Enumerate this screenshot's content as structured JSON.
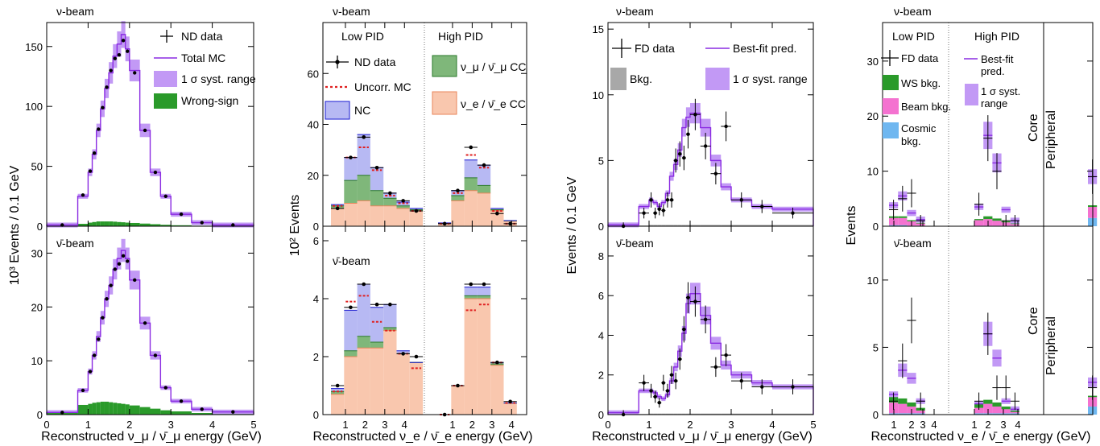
{
  "beam_labels": {
    "nu": "ν-beam",
    "nubar": "ν̄-beam"
  },
  "panel_text": {
    "p1_ylabel": "10³ Events / 0.1 GeV",
    "p1_xlabel": "Reconstructed ν_μ / ν̄_μ energy (GeV)",
    "p2_ylabel": "10² Events",
    "p2_xlabel": "Reconstructed ν_e / ν̄_e energy (GeV)",
    "p3_ylabel": "Events / 0.1 GeV",
    "p3_xlabel": "Reconstructed ν_μ / ν̄_μ energy (GeV)",
    "p4_ylabel": "Events",
    "p4_xlabel": "Reconstructed ν_e / ν̄_e energy (GeV)",
    "low_pid": "Low PID",
    "high_pid": "High PID",
    "core": "Core",
    "peripheral": "Peripheral"
  },
  "legends": {
    "p1": [
      "ND data",
      "Total MC",
      "1 σ syst. range",
      "Wrong-sign"
    ],
    "p2": [
      "ND data",
      "Uncorr. MC",
      "NC",
      "ν_μ / ν̄_μ CC",
      "ν_e / ν̄_e CC"
    ],
    "p3": [
      "FD data",
      "Best-fit pred.",
      "Bkg.",
      "1 σ syst. range"
    ],
    "p4": [
      "FD data",
      "Best-fit",
      "pred.",
      "WS bkg.",
      "1 σ syst.",
      "range",
      "Beam bkg.",
      "Cosmic",
      "bkg."
    ]
  },
  "colors": {
    "mc": "#8a2be2",
    "band": "#c299f5",
    "wrong_sign": "#2a9a2a",
    "nc": "#b7b9f3",
    "numu_cc": "#7fb77a",
    "nue_cc": "#f9c7ae",
    "nue_edge": "#e9855a",
    "uncorr": "#e02020",
    "bkg": "#a8a8a8",
    "ws_bkg": "#2a9a2a",
    "beam_bkg": "#f472d0",
    "cosmic_bkg": "#6fb7f0"
  },
  "chart_data": [
    {
      "type": "histogram",
      "panel": "nu-beam ND numu",
      "xlim": [
        0,
        5
      ],
      "ylim": [
        0,
        170
      ],
      "x_ticks": [
        0,
        1,
        2,
        3,
        4,
        5
      ],
      "y_ticks": [
        0,
        50,
        100,
        150
      ],
      "bin_edges": [
        0,
        0.75,
        1,
        1.1,
        1.2,
        1.3,
        1.4,
        1.5,
        1.6,
        1.7,
        1.8,
        1.9,
        2,
        2.25,
        2.5,
        2.75,
        3,
        3.5,
        4,
        5
      ],
      "mc": [
        1,
        25,
        45,
        60,
        80,
        98,
        115,
        128,
        142,
        152,
        160,
        148,
        130,
        80,
        45,
        25,
        10,
        3,
        1
      ],
      "data": [
        1,
        26,
        46,
        61,
        81,
        99,
        116,
        130,
        140,
        143,
        155,
        146,
        128,
        80,
        45,
        25,
        10,
        3,
        1
      ],
      "wrong_sign": [
        0.2,
        2,
        3,
        3.5,
        4,
        4,
        4,
        4,
        3.8,
        3.5,
        3.3,
        3,
        2.7,
        2.2,
        1.7,
        1.2,
        0.8,
        0.4,
        0.2
      ]
    },
    {
      "type": "histogram",
      "panel": "nubar-beam ND numu",
      "xlim": [
        0,
        5
      ],
      "ylim": [
        0,
        35
      ],
      "x_ticks": [
        0,
        1,
        2,
        3,
        4,
        5
      ],
      "y_ticks": [
        0,
        10,
        20,
        30
      ],
      "bin_edges": [
        0,
        0.75,
        1,
        1.1,
        1.2,
        1.3,
        1.4,
        1.5,
        1.6,
        1.7,
        1.8,
        1.9,
        2,
        2.25,
        2.5,
        2.75,
        3,
        3.5,
        4,
        5
      ],
      "mc": [
        0.4,
        4.5,
        8,
        11,
        14.5,
        18,
        21.5,
        24,
        27,
        29,
        30.5,
        29,
        25,
        17,
        11,
        5,
        2.5,
        1,
        0.5
      ],
      "data": [
        0.4,
        4.5,
        8,
        11,
        14,
        18,
        21.5,
        24,
        27,
        28,
        29.5,
        28.5,
        25,
        17,
        11,
        5,
        2.5,
        1,
        0.5
      ],
      "wrong_sign": [
        0.3,
        1.8,
        2,
        2.2,
        2.3,
        2.4,
        2.4,
        2.3,
        2.2,
        2.1,
        2,
        1.9,
        1.7,
        1.4,
        1.1,
        0.8,
        0.6,
        0.3,
        0.1
      ]
    },
    {
      "type": "stacked_histogram",
      "panel": "nu-beam ND nue",
      "ylim": [
        0,
        80
      ],
      "y_ticks": [
        0,
        20,
        40,
        60
      ],
      "x_ticks": [
        "1",
        "2",
        "3",
        "4",
        "1",
        "2",
        "3",
        "4"
      ],
      "nue_cc": [
        7,
        9,
        10,
        8,
        8,
        7,
        6,
        1,
        10,
        14,
        13,
        6,
        2
      ],
      "numu_cc": [
        1,
        9,
        10,
        6,
        3,
        1,
        0.5,
        0.2,
        2,
        5,
        3,
        0.5,
        0.1
      ],
      "nc": [
        0.5,
        9,
        16,
        9,
        2,
        1.5,
        0.5,
        0.1,
        2,
        7,
        8,
        0.5,
        0.1
      ],
      "uncorr_mc": [
        8,
        27,
        31,
        22,
        12,
        9,
        6,
        1,
        13,
        28,
        23,
        6,
        1
      ],
      "data": [
        7,
        27,
        35,
        23,
        13,
        10,
        6,
        1,
        14,
        31,
        24,
        5,
        1
      ]
    },
    {
      "type": "stacked_histogram",
      "panel": "nubar-beam ND nue",
      "ylim": [
        0,
        6.5
      ],
      "y_ticks": [
        0,
        2,
        4,
        6
      ],
      "x_ticks": [
        "1",
        "2",
        "3",
        "4",
        "1",
        "2",
        "3",
        "4"
      ],
      "nue_cc": [
        0.7,
        2,
        2.3,
        2.3,
        2.9,
        2.1,
        1.8,
        0,
        1,
        4,
        4,
        1.7,
        0.4
      ],
      "numu_cc": [
        0.1,
        0.2,
        0.4,
        0.2,
        0.1,
        0,
        0,
        0,
        0,
        0.1,
        0.1,
        0.05,
        0
      ],
      "nc": [
        0.1,
        1.4,
        1.8,
        1.2,
        0.8,
        0.1,
        0,
        0,
        0,
        0.3,
        0.3,
        0.05,
        0
      ],
      "uncorr_mc": [
        0.8,
        3.9,
        4.1,
        3.2,
        2.9,
        2.1,
        1.6,
        0,
        1,
        3.6,
        3.8,
        1.8,
        0.4
      ],
      "data": [
        1,
        3.7,
        4.5,
        3.8,
        3.8,
        2.1,
        2,
        0,
        1,
        4.5,
        4.5,
        1.8,
        0.45
      ]
    },
    {
      "type": "histogram",
      "panel": "nu-beam FD numu",
      "xlim": [
        0,
        5
      ],
      "ylim": [
        0,
        15.5
      ],
      "x_ticks": [
        0,
        1,
        2,
        3,
        4,
        5
      ],
      "y_ticks": [
        0,
        5,
        10,
        15
      ],
      "bin_edges": [
        0,
        0.75,
        1,
        1.1,
        1.2,
        1.3,
        1.4,
        1.5,
        1.6,
        1.7,
        1.8,
        1.9,
        2,
        2.25,
        2.5,
        2.75,
        3,
        3.5,
        4,
        5
      ],
      "mc": [
        0.1,
        1.5,
        2,
        1.8,
        1.5,
        1.8,
        2.5,
        3.8,
        4.7,
        5.8,
        7.5,
        8.3,
        8.6,
        7.5,
        5,
        3,
        2,
        1.5,
        1.3
      ],
      "data": [
        0,
        1,
        2,
        1,
        1.3,
        1.2,
        2,
        2,
        5,
        5.5,
        5.2,
        7,
        8.5,
        6.1,
        4,
        7.6,
        2,
        1.5,
        1
      ],
      "bkg": [
        0,
        0.05,
        0.1,
        0.1,
        0.1,
        0.1,
        0.1,
        0.1,
        0.1,
        0.1,
        0.1,
        0.1,
        0.1,
        0.1,
        0.1,
        0.1,
        0.1,
        0.1,
        0.1
      ]
    },
    {
      "type": "histogram",
      "panel": "nubar-beam FD numu",
      "xlim": [
        0,
        5
      ],
      "ylim": [
        0,
        9.5
      ],
      "x_ticks": [
        0,
        1,
        2,
        3,
        4,
        5
      ],
      "y_ticks": [
        0,
        2,
        4,
        6,
        8
      ],
      "bin_edges": [
        0,
        0.75,
        1,
        1.1,
        1.2,
        1.3,
        1.4,
        1.5,
        1.6,
        1.7,
        1.8,
        1.9,
        2,
        2.25,
        2.5,
        2.75,
        3,
        3.5,
        4,
        5
      ],
      "mc": [
        0.1,
        1.2,
        1.2,
        1.1,
        0.9,
        0.8,
        1,
        1.7,
        2.4,
        3.2,
        4.1,
        5.6,
        6.1,
        5,
        3.6,
        2.5,
        2,
        1.6,
        1.4
      ],
      "data": [
        0,
        1.6,
        1.2,
        0.9,
        0.6,
        1.6,
        1.2,
        2,
        1.7,
        2.8,
        4.3,
        5.9,
        5.7,
        4.8,
        2.4,
        3,
        1.7,
        1.4,
        1.4
      ],
      "bkg": [
        0,
        0.03,
        0.05,
        0.05,
        0.05,
        0.05,
        0.05,
        0.05,
        0.05,
        0.05,
        0.05,
        0.05,
        0.05,
        0.05,
        0.05,
        0.05,
        0.05,
        0.05,
        0.05
      ]
    },
    {
      "type": "stacked_histogram",
      "panel": "nu-beam FD nue",
      "ylim": [
        0,
        37
      ],
      "y_ticks": [
        0,
        10,
        20,
        30
      ],
      "x_ticks": [
        "1",
        "2",
        "3",
        "4",
        "1",
        "2",
        "3",
        "4"
      ],
      "pred": [
        3.8,
        5.5,
        2.4,
        1.2,
        3.5,
        16.5,
        11.5,
        3,
        1,
        9
      ],
      "ws_bkg": [
        0.3,
        0.3,
        0.2,
        0.1,
        0.2,
        0.5,
        0.4,
        0.2,
        0.1,
        0.3
      ],
      "beam_bkg": [
        1.3,
        1.3,
        0.8,
        0.4,
        1,
        1.2,
        0.9,
        0.6,
        0.3,
        2
      ],
      "cosmic_bkg": [
        0.2,
        0.2,
        0.1,
        0.1,
        0.1,
        0.1,
        0.1,
        0.1,
        0.1,
        1.5
      ],
      "data": [
        3,
        5,
        6,
        1,
        4,
        16,
        10,
        1,
        1,
        9
      ]
    },
    {
      "type": "stacked_histogram",
      "panel": "nubar-beam FD nue",
      "ylim": [
        0,
        14
      ],
      "y_ticks": [
        0,
        5,
        10
      ],
      "x_ticks": [
        "1",
        "2",
        "3",
        "4",
        "1",
        "2",
        "3",
        "4"
      ],
      "pred": [
        1.5,
        3.3,
        2.7,
        1,
        0.8,
        6,
        4.2,
        1,
        0.4,
        2.4
      ],
      "ws_bkg": [
        0.4,
        0.4,
        0.3,
        0.2,
        0.3,
        0.3,
        0.3,
        0.2,
        0.1,
        0.1
      ],
      "beam_bkg": [
        0.8,
        0.7,
        0.5,
        0.2,
        0.4,
        0.7,
        0.5,
        0.3,
        0.1,
        0.7
      ],
      "cosmic_bkg": [
        0.1,
        0.1,
        0.1,
        0.1,
        0.1,
        0.1,
        0.1,
        0.1,
        0.1,
        0.6
      ],
      "data": [
        1,
        4,
        7,
        1,
        1,
        6,
        2,
        2,
        1,
        2
      ]
    }
  ]
}
